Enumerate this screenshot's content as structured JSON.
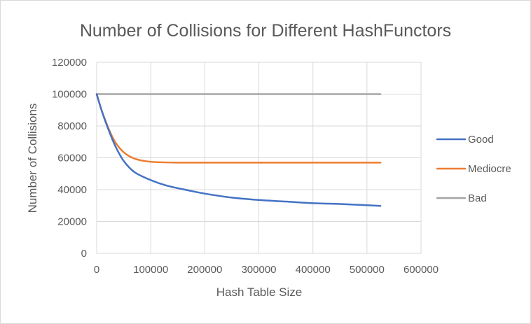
{
  "chart_data": {
    "type": "line",
    "title": "Number of Collisions for Different HashFunctors",
    "xlabel": "Hash Table Size",
    "ylabel": "Number of Collisions",
    "xlim": [
      0,
      600000
    ],
    "ylim": [
      0,
      120000
    ],
    "x_ticks": [
      0,
      100000,
      200000,
      300000,
      400000,
      500000,
      600000
    ],
    "y_ticks": [
      0,
      20000,
      40000,
      60000,
      80000,
      100000,
      120000
    ],
    "x_tick_labels": [
      "0",
      "100000",
      "200000",
      "300000",
      "400000",
      "500000",
      "600000"
    ],
    "y_tick_labels": [
      "0",
      "20000",
      "40000",
      "60000",
      "80000",
      "100000",
      "120000"
    ],
    "grid": true,
    "legend_position": "right",
    "series": [
      {
        "name": "Good",
        "color": "#4472c4",
        "points": [
          [
            0,
            100000
          ],
          [
            8000,
            91000
          ],
          [
            16000,
            83000
          ],
          [
            25000,
            75000
          ],
          [
            35000,
            67000
          ],
          [
            50000,
            58000
          ],
          [
            70000,
            51000
          ],
          [
            100000,
            46000
          ],
          [
            130000,
            42500
          ],
          [
            170000,
            39500
          ],
          [
            200000,
            37500
          ],
          [
            250000,
            35000
          ],
          [
            300000,
            33500
          ],
          [
            350000,
            32500
          ],
          [
            400000,
            31500
          ],
          [
            450000,
            31000
          ],
          [
            500000,
            30200
          ],
          [
            525000,
            29800
          ]
        ]
      },
      {
        "name": "Mediocre",
        "color": "#ed7d31",
        "points": [
          [
            0,
            100000
          ],
          [
            8000,
            91000
          ],
          [
            16000,
            83500
          ],
          [
            25000,
            76000
          ],
          [
            35000,
            69500
          ],
          [
            50000,
            63500
          ],
          [
            70000,
            59500
          ],
          [
            100000,
            57500
          ],
          [
            150000,
            57000
          ],
          [
            200000,
            57000
          ],
          [
            300000,
            57000
          ],
          [
            400000,
            57000
          ],
          [
            525000,
            57000
          ]
        ]
      },
      {
        "name": "Bad",
        "color": "#a5a5a5",
        "points": [
          [
            0,
            100000
          ],
          [
            100000,
            100000
          ],
          [
            200000,
            100000
          ],
          [
            300000,
            100000
          ],
          [
            400000,
            100000
          ],
          [
            525000,
            100000
          ]
        ]
      }
    ]
  }
}
